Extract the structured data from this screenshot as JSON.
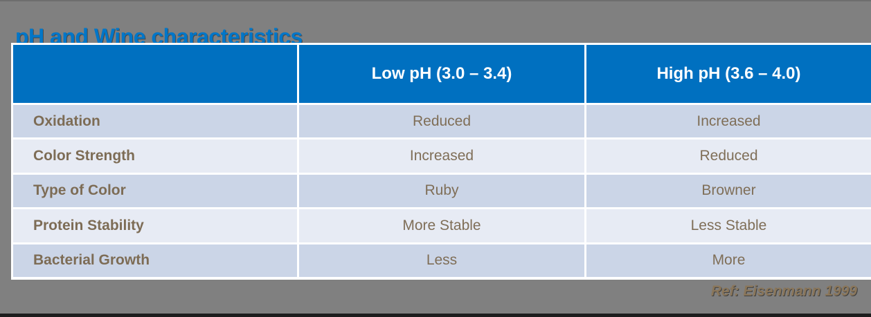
{
  "slide": {
    "title": "pH and Wine characteristics",
    "reference": "Ref: Eisenmann 1999"
  },
  "table": {
    "columns": [
      "",
      "Low pH (3.0 – 3.4)",
      "High pH (3.6 – 4.0)"
    ],
    "rows": [
      {
        "label": "Oxidation",
        "low": "Reduced",
        "high": "Increased"
      },
      {
        "label": "Color Strength",
        "low": "Increased",
        "high": "Reduced"
      },
      {
        "label": "Type of Color",
        "low": "Ruby",
        "high": "Browner"
      },
      {
        "label": "Protein Stability",
        "low": "More Stable",
        "high": "Less Stable"
      },
      {
        "label": "Bacterial Growth",
        "low": "Less",
        "high": "More"
      }
    ]
  },
  "colors": {
    "background": "#808080",
    "header_blue": "#0070c0",
    "title_blue": "#0076c8",
    "row_dark": "#cbd5e7",
    "row_light": "#e7ebf4",
    "text_brown": "#7f6e57",
    "reference_brown": "#8a765a",
    "divider_white": "#ffffff",
    "bottom_bar": "#1d1d1d"
  }
}
